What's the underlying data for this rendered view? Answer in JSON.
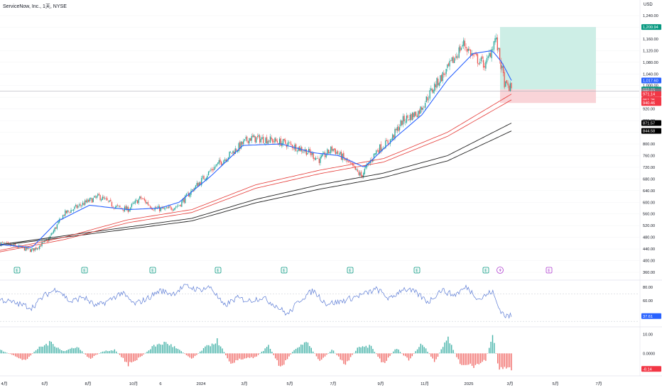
{
  "header": {
    "symbol_title": "ServiceNow, Inc., 1天, NYSE",
    "currency": "USD"
  },
  "colors": {
    "up": "#26a69a",
    "down": "#ef5350",
    "ma_blue": "#2962ff",
    "ma_red": "#e53935",
    "ma_black": "#212121",
    "rsi_line": "#5b7bd5",
    "target_zone": "#cdeee6",
    "stop_zone": "#f9d4d8"
  },
  "icons": {
    "earnings_marker": "E",
    "dividend_marker": "lightning-icon"
  },
  "chart_data": {
    "type": "candlestick",
    "price_axis": {
      "ticks": [
        "1,240.00",
        "1,200.00",
        "1,160.00",
        "1,120.00",
        "1,080.00",
        "1,040.00",
        "1,000.00",
        "960.00",
        "920.00",
        "880.00",
        "840.00",
        "800.00",
        "760.00",
        "720.00",
        "680.00",
        "640.00",
        "600.00",
        "560.00",
        "520.00",
        "480.00",
        "440.00",
        "400.00",
        "360.00"
      ],
      "ylim": [
        360,
        1240
      ]
    },
    "price_labels": [
      {
        "text": "1,200.94",
        "value": 1200.94,
        "color": "#089981"
      },
      {
        "text": "1,017.60",
        "value": 1017.6,
        "color": "#2962ff"
      },
      {
        "text": "986.63",
        "value": 986.63,
        "color": "#089981"
      },
      {
        "text": "980.62",
        "value": 980.62,
        "color": "#787b86"
      },
      {
        "text": "971.14",
        "value": 971.14,
        "color": "#f23645"
      },
      {
        "text": "951.25",
        "value": 951.25,
        "color": "#f23645"
      },
      {
        "text": "940.46",
        "value": 940.46,
        "color": "#f23645"
      },
      {
        "text": "871.57",
        "value": 871.57,
        "color": "#000000"
      },
      {
        "text": "844.58",
        "value": 844.58,
        "color": "#000000"
      }
    ],
    "time_axis": [
      "4月",
      "6月",
      "8月",
      "10月",
      "6",
      "2024",
      "3月",
      "5月",
      "7月",
      "9月",
      "11月",
      "2025",
      "3月",
      "5月",
      "7月"
    ],
    "price_keypoints": [
      [
        0,
        460
      ],
      [
        0.025,
        448
      ],
      [
        0.05,
        435
      ],
      [
        0.075,
        470
      ],
      [
        0.1,
        560
      ],
      [
        0.13,
        595
      ],
      [
        0.155,
        620
      ],
      [
        0.18,
        585
      ],
      [
        0.2,
        575
      ],
      [
        0.22,
        615
      ],
      [
        0.24,
        580
      ],
      [
        0.26,
        575
      ],
      [
        0.28,
        590
      ],
      [
        0.3,
        640
      ],
      [
        0.33,
        710
      ],
      [
        0.36,
        765
      ],
      [
        0.39,
        820
      ],
      [
        0.42,
        815
      ],
      [
        0.45,
        800
      ],
      [
        0.48,
        775
      ],
      [
        0.5,
        745
      ],
      [
        0.52,
        785
      ],
      [
        0.54,
        745
      ],
      [
        0.565,
        690
      ],
      [
        0.59,
        780
      ],
      [
        0.61,
        810
      ],
      [
        0.63,
        880
      ],
      [
        0.655,
        910
      ],
      [
        0.68,
        1000
      ],
      [
        0.7,
        1055
      ],
      [
        0.725,
        1145
      ],
      [
        0.74,
        1100
      ],
      [
        0.76,
        1070
      ],
      [
        0.775,
        1165
      ],
      [
        0.79,
        1000
      ],
      [
        0.8,
        990
      ]
    ],
    "ma_blue_keypoints": [
      [
        0,
        455
      ],
      [
        0.05,
        445
      ],
      [
        0.09,
        535
      ],
      [
        0.14,
        590
      ],
      [
        0.2,
        575
      ],
      [
        0.25,
        580
      ],
      [
        0.28,
        600
      ],
      [
        0.33,
        690
      ],
      [
        0.38,
        795
      ],
      [
        0.44,
        800
      ],
      [
        0.49,
        770
      ],
      [
        0.53,
        760
      ],
      [
        0.57,
        720
      ],
      [
        0.62,
        825
      ],
      [
        0.66,
        900
      ],
      [
        0.7,
        1020
      ],
      [
        0.74,
        1110
      ],
      [
        0.77,
        1120
      ],
      [
        0.785,
        1080
      ],
      [
        0.8,
        1017.6
      ]
    ],
    "ma_red1_keypoints": [
      [
        0,
        435
      ],
      [
        0.1,
        480
      ],
      [
        0.2,
        540
      ],
      [
        0.3,
        575
      ],
      [
        0.4,
        660
      ],
      [
        0.5,
        710
      ],
      [
        0.6,
        750
      ],
      [
        0.7,
        840
      ],
      [
        0.8,
        971
      ]
    ],
    "ma_red2_keypoints": [
      [
        0,
        430
      ],
      [
        0.1,
        472
      ],
      [
        0.2,
        530
      ],
      [
        0.3,
        565
      ],
      [
        0.4,
        648
      ],
      [
        0.5,
        698
      ],
      [
        0.6,
        738
      ],
      [
        0.7,
        826
      ],
      [
        0.8,
        951
      ]
    ],
    "ma_black1_keypoints": [
      [
        0,
        455
      ],
      [
        0.1,
        485
      ],
      [
        0.2,
        515
      ],
      [
        0.3,
        545
      ],
      [
        0.4,
        610
      ],
      [
        0.5,
        660
      ],
      [
        0.6,
        700
      ],
      [
        0.7,
        760
      ],
      [
        0.8,
        871.57
      ]
    ],
    "ma_black2_keypoints": [
      [
        0,
        452
      ],
      [
        0.1,
        480
      ],
      [
        0.2,
        508
      ],
      [
        0.3,
        536
      ],
      [
        0.4,
        598
      ],
      [
        0.5,
        645
      ],
      [
        0.6,
        685
      ],
      [
        0.7,
        742
      ],
      [
        0.8,
        844.58
      ]
    ],
    "position_tool": {
      "target": 1200.94,
      "entry": 986.63,
      "stop": 940.46
    },
    "rsi": {
      "ticks": [
        "80.00",
        "60.00"
      ],
      "last_label": "37.61",
      "last_value": 37.61,
      "ylim": [
        25,
        85
      ],
      "keypoints": [
        [
          0,
          62
        ],
        [
          0.03,
          55
        ],
        [
          0.05,
          50
        ],
        [
          0.07,
          68
        ],
        [
          0.09,
          78
        ],
        [
          0.11,
          58
        ],
        [
          0.13,
          66
        ],
        [
          0.15,
          52
        ],
        [
          0.17,
          60
        ],
        [
          0.19,
          72
        ],
        [
          0.21,
          55
        ],
        [
          0.23,
          63
        ],
        [
          0.25,
          75
        ],
        [
          0.27,
          70
        ],
        [
          0.29,
          82
        ],
        [
          0.31,
          76
        ],
        [
          0.33,
          80
        ],
        [
          0.35,
          52
        ],
        [
          0.37,
          64
        ],
        [
          0.39,
          60
        ],
        [
          0.41,
          65
        ],
        [
          0.43,
          54
        ],
        [
          0.45,
          40
        ],
        [
          0.47,
          62
        ],
        [
          0.49,
          75
        ],
        [
          0.51,
          56
        ],
        [
          0.53,
          58
        ],
        [
          0.55,
          64
        ],
        [
          0.57,
          70
        ],
        [
          0.59,
          77
        ],
        [
          0.61,
          62
        ],
        [
          0.63,
          78
        ],
        [
          0.65,
          72
        ],
        [
          0.67,
          58
        ],
        [
          0.69,
          76
        ],
        [
          0.71,
          68
        ],
        [
          0.73,
          80
        ],
        [
          0.75,
          62
        ],
        [
          0.77,
          74
        ],
        [
          0.78,
          50
        ],
        [
          0.79,
          38
        ],
        [
          0.8,
          37.61
        ]
      ]
    },
    "macd": {
      "ticks": [
        "10.00",
        "0.0000"
      ],
      "last_label": "-8.14",
      "last_value": -8.14,
      "ylim": [
        -11,
        12
      ],
      "keypoints": [
        [
          0,
          2
        ],
        [
          0.02,
          -1
        ],
        [
          0.04,
          -4
        ],
        [
          0.06,
          3
        ],
        [
          0.08,
          6
        ],
        [
          0.1,
          1
        ],
        [
          0.12,
          4
        ],
        [
          0.14,
          -3
        ],
        [
          0.16,
          1
        ],
        [
          0.18,
          2
        ],
        [
          0.2,
          -6
        ],
        [
          0.22,
          -2
        ],
        [
          0.24,
          4
        ],
        [
          0.26,
          6
        ],
        [
          0.28,
          2
        ],
        [
          0.3,
          -3
        ],
        [
          0.32,
          3
        ],
        [
          0.34,
          7
        ],
        [
          0.36,
          -5
        ],
        [
          0.38,
          -3
        ],
        [
          0.4,
          -2
        ],
        [
          0.42,
          4
        ],
        [
          0.44,
          -8
        ],
        [
          0.46,
          2
        ],
        [
          0.48,
          6
        ],
        [
          0.5,
          -4
        ],
        [
          0.52,
          2
        ],
        [
          0.54,
          -6
        ],
        [
          0.56,
          3
        ],
        [
          0.58,
          4
        ],
        [
          0.6,
          -6
        ],
        [
          0.62,
          3
        ],
        [
          0.64,
          -4
        ],
        [
          0.66,
          6
        ],
        [
          0.68,
          -5
        ],
        [
          0.7,
          9
        ],
        [
          0.72,
          -6
        ],
        [
          0.74,
          -7
        ],
        [
          0.76,
          -4
        ],
        [
          0.77,
          11
        ],
        [
          0.78,
          -8
        ],
        [
          0.8,
          -8.14
        ]
      ]
    }
  }
}
